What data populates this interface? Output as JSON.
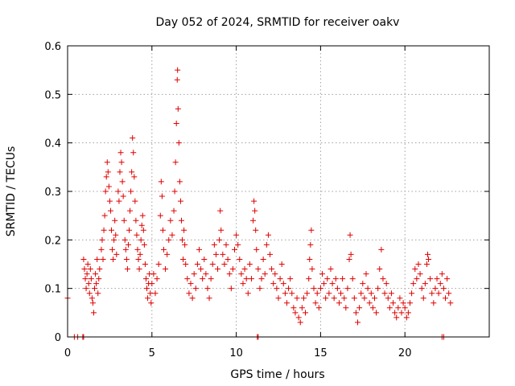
{
  "chart_data": {
    "type": "scatter",
    "title": "Day 052 of 2024, SRMTID for receiver oakv",
    "xlabel": "GPS time / hours",
    "ylabel": "SRMTID / TECUs",
    "xlim": [
      0,
      25
    ],
    "ylim": [
      0,
      0.6
    ],
    "x_ticks": [
      0,
      5,
      10,
      15,
      20
    ],
    "y_ticks": [
      0,
      0.1,
      0.2,
      0.3,
      0.4,
      0.5,
      0.6
    ],
    "x_tick_labels": [
      "0",
      "5",
      "10",
      "15",
      "20"
    ],
    "y_tick_labels": [
      "0",
      "0.1",
      "0.2",
      "0.3",
      "0.4",
      "0.5",
      "0.6"
    ],
    "grid": true,
    "marker": "plus",
    "color": "#e00000",
    "series": [
      {
        "name": "SRMTID",
        "points": [
          [
            0.0,
            0.08
          ],
          [
            0.4,
            0.0
          ],
          [
            0.6,
            0.0
          ],
          [
            0.9,
            0.0
          ],
          [
            0.95,
            0.0
          ],
          [
            11.25,
            0.0
          ],
          [
            11.3,
            0.0
          ],
          [
            22.2,
            0.0
          ],
          [
            22.3,
            0.0
          ],
          [
            0.95,
            0.16
          ],
          [
            1.0,
            0.14
          ],
          [
            1.05,
            0.12
          ],
          [
            1.1,
            0.1
          ],
          [
            1.15,
            0.13
          ],
          [
            1.2,
            0.15
          ],
          [
            1.25,
            0.11
          ],
          [
            1.3,
            0.09
          ],
          [
            1.35,
            0.14
          ],
          [
            1.4,
            0.12
          ],
          [
            1.45,
            0.08
          ],
          [
            1.5,
            0.07
          ],
          [
            1.55,
            0.05
          ],
          [
            1.6,
            0.1
          ],
          [
            1.65,
            0.13
          ],
          [
            1.7,
            0.11
          ],
          [
            1.75,
            0.16
          ],
          [
            1.8,
            0.09
          ],
          [
            1.85,
            0.12
          ],
          [
            1.9,
            0.14
          ],
          [
            2.0,
            0.18
          ],
          [
            2.05,
            0.2
          ],
          [
            2.1,
            0.16
          ],
          [
            2.15,
            0.22
          ],
          [
            2.2,
            0.25
          ],
          [
            2.25,
            0.3
          ],
          [
            2.3,
            0.33
          ],
          [
            2.35,
            0.36
          ],
          [
            2.4,
            0.34
          ],
          [
            2.45,
            0.31
          ],
          [
            2.5,
            0.28
          ],
          [
            2.55,
            0.26
          ],
          [
            2.6,
            0.22
          ],
          [
            2.65,
            0.18
          ],
          [
            2.7,
            0.16
          ],
          [
            2.75,
            0.2
          ],
          [
            2.8,
            0.24
          ],
          [
            2.85,
            0.21
          ],
          [
            2.9,
            0.17
          ],
          [
            3.0,
            0.3
          ],
          [
            3.05,
            0.28
          ],
          [
            3.1,
            0.34
          ],
          [
            3.15,
            0.38
          ],
          [
            3.2,
            0.36
          ],
          [
            3.25,
            0.32
          ],
          [
            3.3,
            0.29
          ],
          [
            3.35,
            0.24
          ],
          [
            3.4,
            0.2
          ],
          [
            3.45,
            0.18
          ],
          [
            3.5,
            0.16
          ],
          [
            3.55,
            0.14
          ],
          [
            3.6,
            0.19
          ],
          [
            3.65,
            0.22
          ],
          [
            3.7,
            0.26
          ],
          [
            3.75,
            0.3
          ],
          [
            3.8,
            0.34
          ],
          [
            3.85,
            0.41
          ],
          [
            3.9,
            0.38
          ],
          [
            3.95,
            0.33
          ],
          [
            4.0,
            0.28
          ],
          [
            4.05,
            0.24
          ],
          [
            4.1,
            0.21
          ],
          [
            4.15,
            0.18
          ],
          [
            4.2,
            0.16
          ],
          [
            4.25,
            0.14
          ],
          [
            4.3,
            0.17
          ],
          [
            4.35,
            0.2
          ],
          [
            4.4,
            0.23
          ],
          [
            4.45,
            0.25
          ],
          [
            4.5,
            0.22
          ],
          [
            4.55,
            0.19
          ],
          [
            4.6,
            0.15
          ],
          [
            4.65,
            0.12
          ],
          [
            4.7,
            0.1
          ],
          [
            4.75,
            0.08
          ],
          [
            4.8,
            0.11
          ],
          [
            4.85,
            0.13
          ],
          [
            4.9,
            0.09
          ],
          [
            4.95,
            0.07
          ],
          [
            5.0,
            0.11
          ],
          [
            5.1,
            0.13
          ],
          [
            5.2,
            0.09
          ],
          [
            5.3,
            0.12
          ],
          [
            5.4,
            0.15
          ],
          [
            5.5,
            0.25
          ],
          [
            5.55,
            0.32
          ],
          [
            5.6,
            0.29
          ],
          [
            5.65,
            0.22
          ],
          [
            5.7,
            0.18
          ],
          [
            5.8,
            0.14
          ],
          [
            5.9,
            0.17
          ],
          [
            6.0,
            0.2
          ],
          [
            6.1,
            0.24
          ],
          [
            6.2,
            0.21
          ],
          [
            6.3,
            0.26
          ],
          [
            6.35,
            0.3
          ],
          [
            6.4,
            0.36
          ],
          [
            6.45,
            0.44
          ],
          [
            6.5,
            0.53
          ],
          [
            6.52,
            0.55
          ],
          [
            6.55,
            0.47
          ],
          [
            6.6,
            0.4
          ],
          [
            6.65,
            0.32
          ],
          [
            6.7,
            0.28
          ],
          [
            6.75,
            0.24
          ],
          [
            6.8,
            0.2
          ],
          [
            6.85,
            0.16
          ],
          [
            6.9,
            0.22
          ],
          [
            6.95,
            0.19
          ],
          [
            7.0,
            0.15
          ],
          [
            7.1,
            0.12
          ],
          [
            7.2,
            0.09
          ],
          [
            7.3,
            0.11
          ],
          [
            7.4,
            0.08
          ],
          [
            7.5,
            0.13
          ],
          [
            7.6,
            0.1
          ],
          [
            7.7,
            0.15
          ],
          [
            7.8,
            0.18
          ],
          [
            7.9,
            0.14
          ],
          [
            8.0,
            0.12
          ],
          [
            8.1,
            0.16
          ],
          [
            8.2,
            0.13
          ],
          [
            8.3,
            0.1
          ],
          [
            8.4,
            0.08
          ],
          [
            8.5,
            0.12
          ],
          [
            8.6,
            0.15
          ],
          [
            8.7,
            0.19
          ],
          [
            8.8,
            0.17
          ],
          [
            8.9,
            0.14
          ],
          [
            9.0,
            0.2
          ],
          [
            9.05,
            0.26
          ],
          [
            9.1,
            0.22
          ],
          [
            9.2,
            0.17
          ],
          [
            9.3,
            0.15
          ],
          [
            9.4,
            0.19
          ],
          [
            9.5,
            0.16
          ],
          [
            9.6,
            0.13
          ],
          [
            9.7,
            0.1
          ],
          [
            9.8,
            0.14
          ],
          [
            9.9,
            0.18
          ],
          [
            10.0,
            0.21
          ],
          [
            10.1,
            0.19
          ],
          [
            10.2,
            0.16
          ],
          [
            10.3,
            0.13
          ],
          [
            10.4,
            0.11
          ],
          [
            10.5,
            0.14
          ],
          [
            10.6,
            0.12
          ],
          [
            10.7,
            0.09
          ],
          [
            10.8,
            0.15
          ],
          [
            10.9,
            0.12
          ],
          [
            11.0,
            0.24
          ],
          [
            11.05,
            0.28
          ],
          [
            11.1,
            0.26
          ],
          [
            11.15,
            0.22
          ],
          [
            11.2,
            0.18
          ],
          [
            11.3,
            0.14
          ],
          [
            11.4,
            0.1
          ],
          [
            11.5,
            0.12
          ],
          [
            11.6,
            0.16
          ],
          [
            11.7,
            0.13
          ],
          [
            11.8,
            0.19
          ],
          [
            11.9,
            0.21
          ],
          [
            12.0,
            0.17
          ],
          [
            12.1,
            0.14
          ],
          [
            12.2,
            0.11
          ],
          [
            12.3,
            0.13
          ],
          [
            12.4,
            0.1
          ],
          [
            12.5,
            0.08
          ],
          [
            12.6,
            0.12
          ],
          [
            12.7,
            0.15
          ],
          [
            12.8,
            0.11
          ],
          [
            12.9,
            0.09
          ],
          [
            13.0,
            0.07
          ],
          [
            13.1,
            0.1
          ],
          [
            13.2,
            0.12
          ],
          [
            13.3,
            0.09
          ],
          [
            13.4,
            0.06
          ],
          [
            13.5,
            0.05
          ],
          [
            13.6,
            0.08
          ],
          [
            13.7,
            0.04
          ],
          [
            13.8,
            0.03
          ],
          [
            13.9,
            0.06
          ],
          [
            14.0,
            0.08
          ],
          [
            14.1,
            0.05
          ],
          [
            14.2,
            0.09
          ],
          [
            14.3,
            0.12
          ],
          [
            14.35,
            0.16
          ],
          [
            14.4,
            0.19
          ],
          [
            14.45,
            0.22
          ],
          [
            14.5,
            0.14
          ],
          [
            14.6,
            0.1
          ],
          [
            14.7,
            0.07
          ],
          [
            14.8,
            0.09
          ],
          [
            14.9,
            0.06
          ],
          [
            15.0,
            0.1
          ],
          [
            15.1,
            0.13
          ],
          [
            15.2,
            0.11
          ],
          [
            15.3,
            0.08
          ],
          [
            15.4,
            0.12
          ],
          [
            15.5,
            0.09
          ],
          [
            15.6,
            0.14
          ],
          [
            15.7,
            0.11
          ],
          [
            15.8,
            0.08
          ],
          [
            15.9,
            0.12
          ],
          [
            16.0,
            0.1
          ],
          [
            16.1,
            0.07
          ],
          [
            16.2,
            0.09
          ],
          [
            16.3,
            0.12
          ],
          [
            16.4,
            0.08
          ],
          [
            16.5,
            0.06
          ],
          [
            16.6,
            0.1
          ],
          [
            16.7,
            0.16
          ],
          [
            16.75,
            0.21
          ],
          [
            16.8,
            0.17
          ],
          [
            16.9,
            0.12
          ],
          [
            17.0,
            0.08
          ],
          [
            17.1,
            0.05
          ],
          [
            17.2,
            0.03
          ],
          [
            17.3,
            0.06
          ],
          [
            17.4,
            0.09
          ],
          [
            17.5,
            0.11
          ],
          [
            17.6,
            0.08
          ],
          [
            17.7,
            0.13
          ],
          [
            17.8,
            0.1
          ],
          [
            17.9,
            0.07
          ],
          [
            18.0,
            0.09
          ],
          [
            18.1,
            0.06
          ],
          [
            18.2,
            0.08
          ],
          [
            18.3,
            0.05
          ],
          [
            18.4,
            0.1
          ],
          [
            18.5,
            0.14
          ],
          [
            18.6,
            0.18
          ],
          [
            18.7,
            0.12
          ],
          [
            18.8,
            0.09
          ],
          [
            18.9,
            0.11
          ],
          [
            19.0,
            0.08
          ],
          [
            19.1,
            0.06
          ],
          [
            19.2,
            0.09
          ],
          [
            19.3,
            0.07
          ],
          [
            19.4,
            0.05
          ],
          [
            19.5,
            0.04
          ],
          [
            19.6,
            0.06
          ],
          [
            19.7,
            0.08
          ],
          [
            19.8,
            0.05
          ],
          [
            19.9,
            0.07
          ],
          [
            20.0,
            0.06
          ],
          [
            20.1,
            0.04
          ],
          [
            20.2,
            0.05
          ],
          [
            20.3,
            0.07
          ],
          [
            20.4,
            0.09
          ],
          [
            20.5,
            0.11
          ],
          [
            20.6,
            0.14
          ],
          [
            20.7,
            0.12
          ],
          [
            20.8,
            0.15
          ],
          [
            20.9,
            0.13
          ],
          [
            21.0,
            0.1
          ],
          [
            21.1,
            0.08
          ],
          [
            21.2,
            0.11
          ],
          [
            21.3,
            0.15
          ],
          [
            21.35,
            0.17
          ],
          [
            21.4,
            0.16
          ],
          [
            21.5,
            0.12
          ],
          [
            21.6,
            0.09
          ],
          [
            21.7,
            0.07
          ],
          [
            21.8,
            0.1
          ],
          [
            21.9,
            0.12
          ],
          [
            22.0,
            0.09
          ],
          [
            22.1,
            0.11
          ],
          [
            22.2,
            0.13
          ],
          [
            22.3,
            0.1
          ],
          [
            22.4,
            0.08
          ],
          [
            22.5,
            0.12
          ],
          [
            22.6,
            0.09
          ],
          [
            22.7,
            0.07
          ]
        ]
      }
    ]
  }
}
